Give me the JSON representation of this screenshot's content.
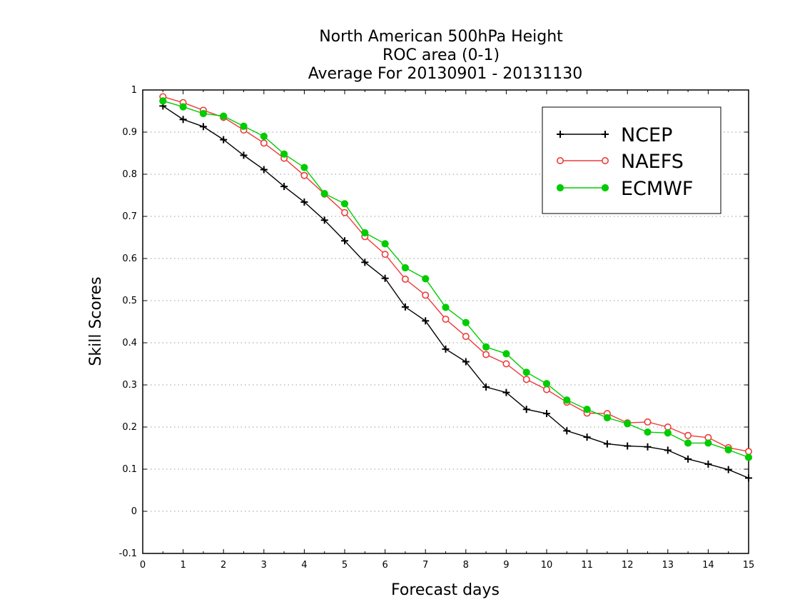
{
  "chart_data": {
    "type": "line",
    "title_lines": [
      "North American 500hPa Height",
      "ROC area (0-1)",
      "Average For 20130901 - 20131130"
    ],
    "xlabel": "Forecast days",
    "ylabel": "Skill Scores",
    "xlim": [
      0,
      15
    ],
    "ylim": [
      -0.1,
      1
    ],
    "xticks": [
      0,
      1,
      2,
      3,
      4,
      5,
      6,
      7,
      8,
      9,
      10,
      11,
      12,
      13,
      14,
      15
    ],
    "xtick_labels": [
      "0",
      "1",
      "2",
      "3",
      "4",
      "5",
      "6",
      "7",
      "8",
      "9",
      "10",
      "11",
      "12",
      "13",
      "14",
      "15"
    ],
    "yticks": [
      -0.1,
      0,
      0.1,
      0.2,
      0.3,
      0.4,
      0.5,
      0.6,
      0.7,
      0.8,
      0.9,
      1
    ],
    "ytick_labels": [
      "-0.1",
      "0",
      "0.1",
      "0.2",
      "0.3",
      "0.4",
      "0.5",
      "0.6",
      "0.7",
      "0.8",
      "0.9",
      "1"
    ],
    "grid": "horizontal-dotted",
    "legend_position": "top-right",
    "x": [
      0.5,
      1,
      1.5,
      2,
      2.5,
      3,
      3.5,
      4,
      4.5,
      5,
      5.5,
      6,
      6.5,
      7,
      7.5,
      8,
      8.5,
      9,
      9.5,
      10,
      10.5,
      11,
      11.5,
      12,
      12.5,
      13,
      13.5,
      14,
      14.5,
      15
    ],
    "series": [
      {
        "name": "NCEP",
        "color": "#000000",
        "marker": "plus",
        "values": [
          0.962,
          0.93,
          0.913,
          0.882,
          0.845,
          0.811,
          0.771,
          0.734,
          0.691,
          0.642,
          0.591,
          0.553,
          0.485,
          0.452,
          0.385,
          0.355,
          0.295,
          0.282,
          0.242,
          0.232,
          0.191,
          0.176,
          0.16,
          0.155,
          0.153,
          0.145,
          0.124,
          0.112,
          0.099,
          0.079
        ]
      },
      {
        "name": "NAEFS",
        "color": "#ee3b3b",
        "marker": "open-circle",
        "values": [
          0.984,
          0.97,
          0.952,
          0.935,
          0.905,
          0.874,
          0.838,
          0.797,
          0.753,
          0.709,
          0.652,
          0.61,
          0.551,
          0.513,
          0.456,
          0.415,
          0.372,
          0.35,
          0.313,
          0.289,
          0.259,
          0.233,
          0.232,
          0.21,
          0.212,
          0.2,
          0.18,
          0.175,
          0.151,
          0.142
        ]
      },
      {
        "name": "ECMWF",
        "color": "#00cc00",
        "marker": "filled-circle",
        "values": [
          0.974,
          0.96,
          0.944,
          0.938,
          0.914,
          0.89,
          0.848,
          0.816,
          0.754,
          0.73,
          0.661,
          0.635,
          0.578,
          0.552,
          0.484,
          0.448,
          0.39,
          0.374,
          0.33,
          0.303,
          0.264,
          0.242,
          0.222,
          0.208,
          0.188,
          0.186,
          0.162,
          0.162,
          0.146,
          0.128
        ]
      }
    ]
  }
}
